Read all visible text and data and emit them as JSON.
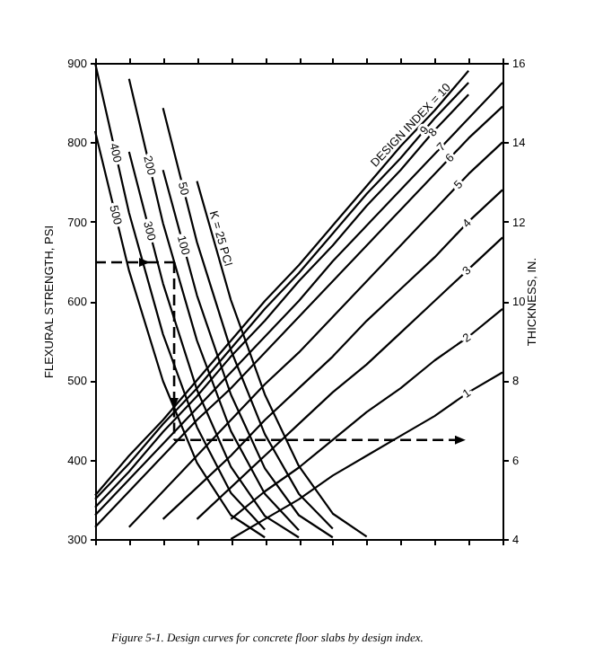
{
  "chart_data": {
    "type": "line",
    "ylabel": "FLEXURAL STRENGTH, PSI",
    "y2label": "THICKNESS, IN.",
    "categories": [
      null,
      null,
      null,
      null,
      null,
      null,
      null,
      null,
      null,
      null,
      null,
      null,
      null
    ],
    "ylim": [
      300,
      900
    ],
    "yticks": [
      300,
      400,
      500,
      600,
      700,
      800,
      900
    ],
    "y2lim": [
      4,
      16
    ],
    "y2ticks": [
      4,
      6,
      8,
      10,
      12,
      14,
      16
    ],
    "tick_labels": "y",
    "annotations": [
      "Figure 5-1. Design curves for concrete floor slabs by design index."
    ],
    "series": [
      {
        "name": "500",
        "color": "#000000",
        "values": [
          814,
          638,
          499,
          396,
          330,
          302,
          null,
          null,
          null,
          null,
          null,
          null,
          null
        ]
      },
      {
        "name": "400",
        "color": "#000000",
        "values": [
          900,
          711,
          558,
          441,
          358,
          312,
          null,
          null,
          null,
          null,
          null,
          null,
          null
        ]
      },
      {
        "name": "300",
        "color": "#000000",
        "values": [
          null,
          788,
          622,
          488,
          391,
          329,
          302,
          null,
          null,
          null,
          null,
          null,
          null
        ]
      },
      {
        "name": "200",
        "color": "#000000",
        "values": [
          null,
          880,
          698,
          550,
          436,
          357,
          311,
          null,
          null,
          null,
          null,
          null,
          null
        ]
      },
      {
        "name": "100",
        "color": "#000000",
        "values": [
          null,
          null,
          765,
          607,
          482,
          389,
          330,
          302,
          null,
          null,
          null,
          null,
          null
        ]
      },
      {
        "name": "50",
        "color": "#000000",
        "values": [
          null,
          null,
          843,
          674,
          538,
          432,
          357,
          313,
          null,
          null,
          null,
          null,
          null
        ]
      },
      {
        "name": "K = 25 PCI",
        "color": "#000000",
        "values": [
          null,
          null,
          null,
          751,
          601,
          482,
          392,
          332,
          303,
          null,
          null,
          null,
          null
        ]
      },
      {
        "name": "1",
        "axis": "y2",
        "color": "#000000",
        "values": [
          null,
          null,
          null,
          null,
          4.0,
          4.5,
          5.0,
          5.6,
          6.1,
          6.6,
          7.1,
          7.7,
          8.2
        ]
      },
      {
        "name": "2",
        "axis": "y2",
        "color": "#000000",
        "values": [
          null,
          null,
          null,
          null,
          4.5,
          5.2,
          5.8,
          6.5,
          7.2,
          7.8,
          8.5,
          9.1,
          9.8
        ]
      },
      {
        "name": "3",
        "axis": "y2",
        "color": "#000000",
        "values": [
          null,
          null,
          null,
          4.5,
          5.3,
          6.1,
          6.9,
          7.7,
          8.4,
          9.2,
          10.0,
          10.8,
          11.6
        ]
      },
      {
        "name": "4",
        "axis": "y2",
        "color": "#000000",
        "values": [
          null,
          null,
          4.5,
          5.3,
          6.1,
          7.0,
          7.8,
          8.6,
          9.5,
          10.3,
          11.1,
          12.0,
          12.8
        ]
      },
      {
        "name": "5",
        "axis": "y2",
        "color": "#000000",
        "values": [
          null,
          4.3,
          5.2,
          6.1,
          7.0,
          7.9,
          8.7,
          9.6,
          10.5,
          11.4,
          12.3,
          13.2,
          14.0
        ]
      },
      {
        "name": "6",
        "axis": "y2",
        "color": "#000000",
        "values": [
          4.3,
          5.2,
          6.1,
          7.0,
          7.8,
          8.7,
          9.6,
          10.5,
          11.4,
          12.3,
          13.2,
          14.1,
          14.9
        ]
      },
      {
        "name": "7",
        "axis": "y2",
        "color": "#000000",
        "values": [
          4.6,
          5.5,
          6.4,
          7.3,
          8.2,
          9.1,
          10.0,
          11.0,
          11.9,
          12.8,
          13.7,
          14.6,
          15.5
        ]
      },
      {
        "name": "8",
        "axis": "y2",
        "color": "#000000",
        "values": [
          4.8,
          5.7,
          6.7,
          7.6,
          8.6,
          9.5,
          10.5,
          11.4,
          12.4,
          13.3,
          14.3,
          15.2,
          null
        ]
      },
      {
        "name": "9",
        "axis": "y2",
        "color": "#000000",
        "values": [
          5.0,
          5.9,
          6.9,
          7.8,
          8.8,
          9.8,
          10.7,
          11.7,
          12.7,
          13.6,
          14.6,
          15.5,
          null
        ]
      },
      {
        "name": "DESIGN INDEX = 10",
        "axis": "y2",
        "color": "#000000",
        "values": [
          5.1,
          6.1,
          7.0,
          8.0,
          9.0,
          10.0,
          10.9,
          11.9,
          12.9,
          13.9,
          14.8,
          15.8,
          null
        ]
      }
    ]
  }
}
